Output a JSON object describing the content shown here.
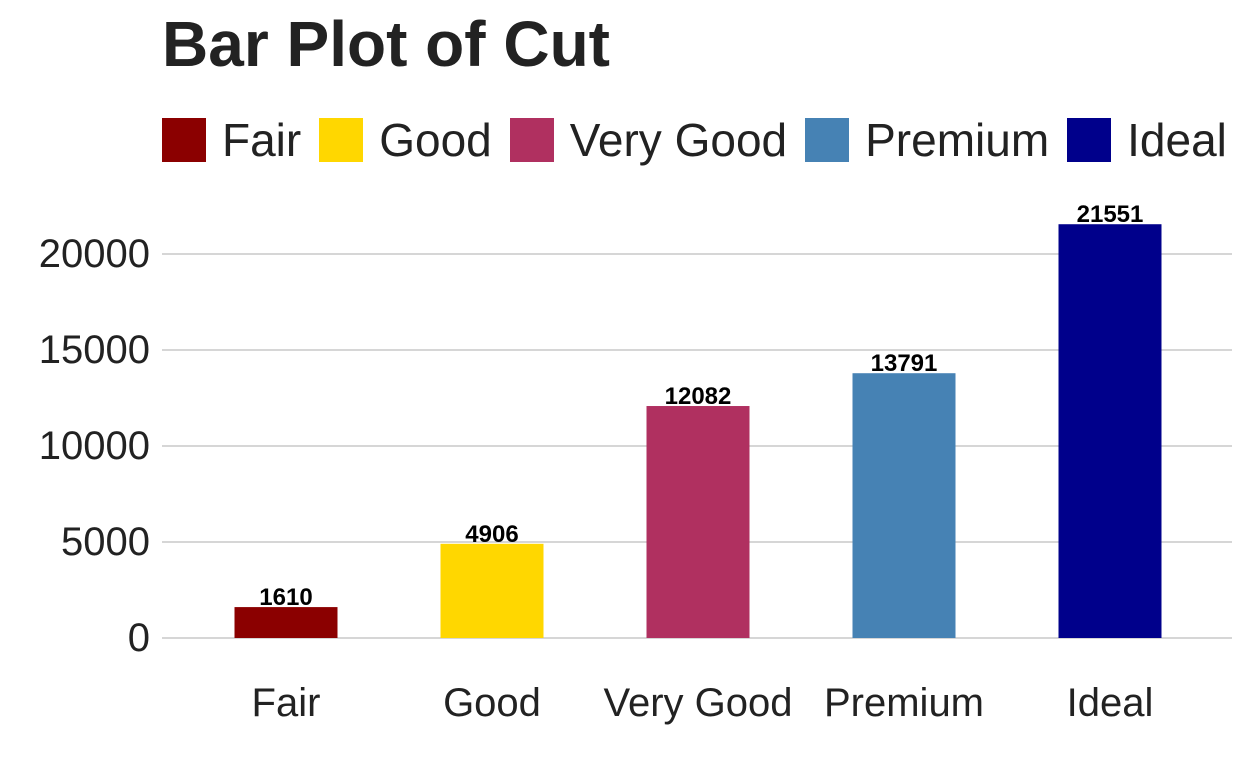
{
  "chart_data": {
    "type": "bar",
    "title": "Bar Plot of Cut",
    "xlabel": "",
    "ylabel": "",
    "categories": [
      "Fair",
      "Good",
      "Very Good",
      "Premium",
      "Ideal"
    ],
    "values": [
      1610,
      4906,
      12082,
      13791,
      21551
    ],
    "data_labels": [
      "1610",
      "4906",
      "12082",
      "13791",
      "21551"
    ],
    "colors": [
      "#8b0000",
      "#ffd700",
      "#b03060",
      "#4682b4",
      "#00008b"
    ],
    "ylim": [
      0,
      23000
    ],
    "yticks": [
      0,
      5000,
      10000,
      15000,
      20000
    ],
    "ytick_labels": [
      "0",
      "5000",
      "10000",
      "15000",
      "20000"
    ],
    "grid": "horizontal",
    "legend_position": "top",
    "legend": [
      "Fair",
      "Good",
      "Very Good",
      "Premium",
      "Ideal"
    ]
  }
}
